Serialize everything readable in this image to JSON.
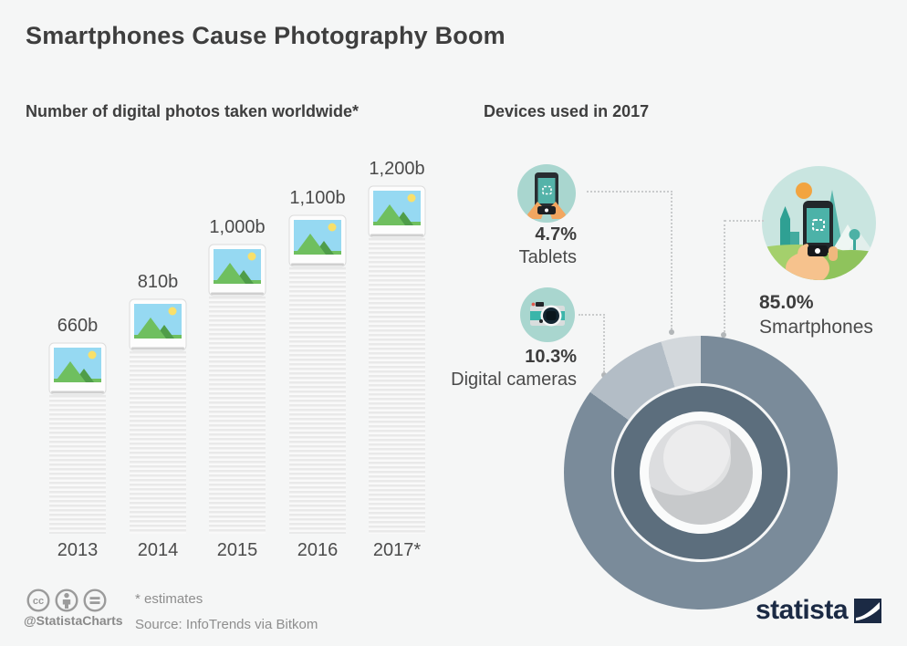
{
  "title": "Smartphones Cause Photography Boom",
  "left_section": {
    "heading": "Number of digital photos taken worldwide*"
  },
  "right_section": {
    "heading": "Devices used in 2017"
  },
  "chart_data": [
    {
      "type": "bar",
      "title": "Number of digital photos taken worldwide*",
      "categories": [
        "2013",
        "2014",
        "2015",
        "2016",
        "2017*"
      ],
      "values": [
        660,
        810,
        1000,
        1100,
        1200
      ],
      "value_labels": [
        "660b",
        "810b",
        "1,000b",
        "1,100b",
        "1,200b"
      ],
      "unit": "billions of photos",
      "ylim": [
        0,
        1200
      ],
      "grid": false
    },
    {
      "type": "pie",
      "title": "Devices used in 2017",
      "slices": [
        {
          "label": "Smartphones",
          "value": 85.0,
          "display": "85.0%",
          "color": "#7a8b9a"
        },
        {
          "label": "Digital cameras",
          "value": 10.3,
          "display": "10.3%",
          "color": "#b3bdc6"
        },
        {
          "label": "Tablets",
          "value": 4.7,
          "display": "4.7%",
          "color": "#d3d8dc"
        }
      ],
      "legend_position": "callouts",
      "style": "camera-lens donut"
    }
  ],
  "devices": {
    "tablets": {
      "percent": "4.7%",
      "label": "Tablets"
    },
    "cameras": {
      "percent": "10.3%",
      "label": "Digital cameras"
    },
    "smartphones": {
      "percent": "85.0%",
      "label": "Smartphones"
    }
  },
  "footer": {
    "handle": "@StatistaCharts",
    "estimates_note": "* estimates",
    "source": "Source: InfoTrends via Bitkom",
    "logo_text": "statista"
  },
  "colors": {
    "background": "#f5f6f6",
    "heading_text": "#3e3e3e",
    "teal_icon_circle": "#a9d6cf",
    "teal_screen": "#54b3a9",
    "light_teal_scene": "#c9e5e0",
    "slate_smartphones": "#7a8b9a",
    "gray_cameras": "#b3bdc6",
    "light_gray_tablets": "#d3d8dc",
    "lens_barrel": "#5c6e7d",
    "statista_navy": "#1b2a44",
    "sun_orange": "#f2a440",
    "skin": "#f2a660"
  }
}
